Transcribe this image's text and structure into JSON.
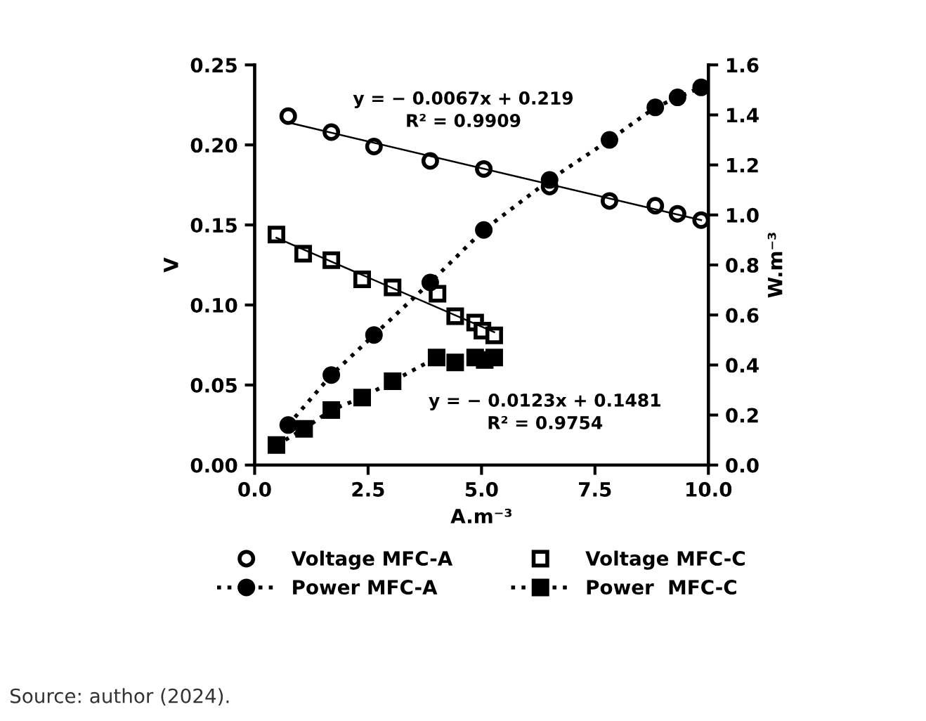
{
  "chart_data": {
    "type": "scatter",
    "xlabel": "A.m⁻³",
    "ylabel": "V",
    "y2label": "W.m⁻³",
    "xlim": [
      0,
      10
    ],
    "xticks": [
      {
        "value": 0,
        "label": "0.0"
      },
      {
        "value": 2.5,
        "label": "2.5"
      },
      {
        "value": 5,
        "label": "5.0"
      },
      {
        "value": 7.5,
        "label": "7.5"
      },
      {
        "value": 10,
        "label": "10.0"
      }
    ],
    "ylim": [
      0,
      0.25
    ],
    "yticks": [
      {
        "value": 0,
        "label": "0.00"
      },
      {
        "value": 0.05,
        "label": "0.05"
      },
      {
        "value": 0.1,
        "label": "0.10"
      },
      {
        "value": 0.15,
        "label": "0.15"
      },
      {
        "value": 0.2,
        "label": "0.20"
      },
      {
        "value": 0.25,
        "label": "0.25"
      }
    ],
    "y2lim": [
      0,
      1.6
    ],
    "y2ticks": [
      {
        "value": 0,
        "label": "0.0"
      },
      {
        "value": 0.2,
        "label": "0.2"
      },
      {
        "value": 0.4,
        "label": "0.4"
      },
      {
        "value": 0.6,
        "label": "0.6"
      },
      {
        "value": 0.8,
        "label": "0.8"
      },
      {
        "value": 1.0,
        "label": "1.0"
      },
      {
        "value": 1.2,
        "label": "1.2"
      },
      {
        "value": 1.4,
        "label": "1.4"
      },
      {
        "value": 1.6,
        "label": "1.6"
      }
    ],
    "grid": false,
    "legend": "bottom",
    "series": [
      {
        "name": "Voltage MFC-A",
        "marker": "circle",
        "color": "#000000",
        "x": [
          0.74,
          1.69,
          2.63,
          3.87,
          5.05,
          6.5,
          7.82,
          8.83,
          9.32,
          9.84
        ],
        "values": [
          0.218,
          0.208,
          0.199,
          0.19,
          0.185,
          0.174,
          0.165,
          0.162,
          0.157,
          0.153
        ]
      },
      {
        "name": "Voltage MFC-C",
        "marker": "square",
        "color": "#000000",
        "x": [
          0.48,
          1.07,
          1.69,
          2.37,
          3.04,
          4.03,
          4.42,
          4.86,
          5.02,
          5.28
        ],
        "values": [
          0.144,
          0.132,
          0.128,
          0.116,
          0.111,
          0.107,
          0.093,
          0.089,
          0.084,
          0.081
        ]
      },
      {
        "name": "Power MFC-A",
        "type": "line",
        "axis": "y2",
        "marker": "circle",
        "line_style": "dotted",
        "color": "#000000",
        "x": [
          0.74,
          1.69,
          2.63,
          3.87,
          5.05,
          6.5,
          7.82,
          8.83,
          9.32,
          9.84
        ],
        "values": [
          0.16,
          0.36,
          0.52,
          0.73,
          0.94,
          1.14,
          1.3,
          1.43,
          1.47,
          1.51
        ]
      },
      {
        "name": "Power  MFC-C",
        "type": "line",
        "axis": "y2",
        "marker": "square",
        "line_style": "dotted",
        "color": "#000000",
        "x": [
          0.48,
          1.09,
          1.69,
          2.37,
          3.04,
          4.01,
          4.42,
          4.86,
          5.07,
          5.28
        ],
        "values": [
          0.08,
          0.145,
          0.22,
          0.27,
          0.335,
          0.43,
          0.41,
          0.43,
          0.42,
          0.43
        ]
      },
      {
        "type": "line",
        "marker": "none",
        "line_style": "solid",
        "color": "#000000",
        "x": [
          0.74,
          9.84
        ],
        "values": [
          0.214,
          0.153
        ]
      },
      {
        "type": "line",
        "marker": "none",
        "line_style": "solid",
        "color": "#000000",
        "x": [
          0.48,
          5.28
        ],
        "values": [
          0.142,
          0.083
        ]
      }
    ],
    "annotations": [
      "y = − 0.0067x + 0.219\nR² = 0.9909",
      "y = − 0.0123x + 0.1481\nR² = 0.9754",
      "Source: author (2024)."
    ]
  }
}
